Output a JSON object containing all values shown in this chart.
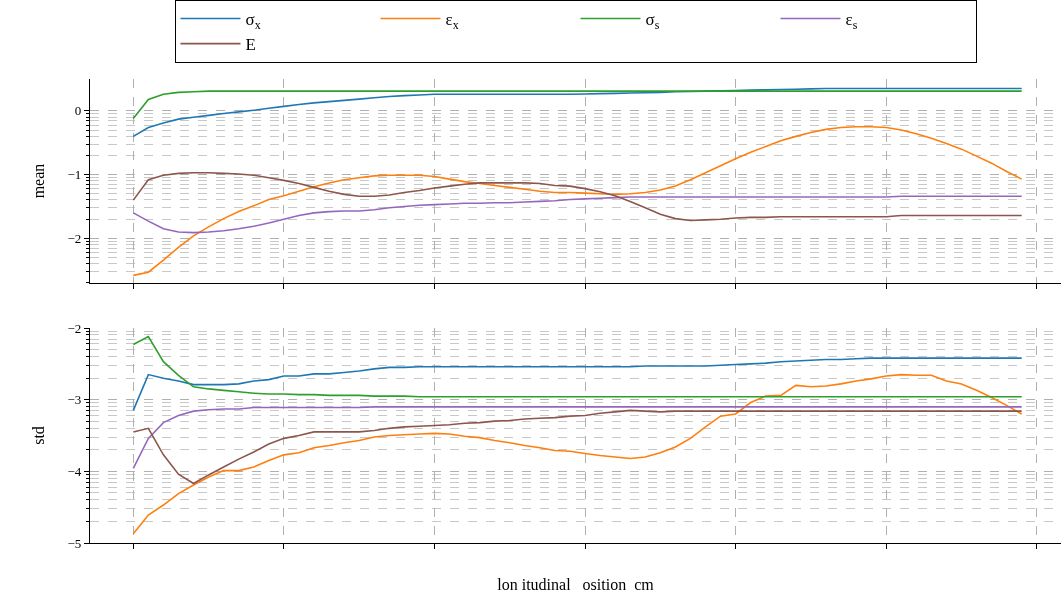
{
  "chart_data": [
    {
      "type": "line",
      "ylabel": "mean",
      "categories": [
        null,
        null,
        null,
        null,
        null,
        null,
        null,
        null,
        null,
        null,
        null,
        null,
        null,
        null,
        null,
        null,
        null,
        null,
        null,
        null,
        null,
        null,
        null,
        null,
        null,
        null,
        null,
        null,
        null,
        null,
        null,
        null,
        null,
        null,
        null,
        null,
        null,
        null,
        null,
        null,
        null,
        null,
        null,
        null,
        null,
        null,
        null,
        null,
        null,
        null,
        null,
        null,
        null,
        null,
        null,
        null,
        null,
        null,
        null,
        null
      ],
      "series": [
        {
          "name": "σ$_{x}$",
          "color": "#1f77b4",
          "values": [
            -0.4,
            -0.26,
            -0.19,
            -0.13,
            -0.1,
            -0.07,
            -0.04,
            -0.015,
            0.01,
            0.04,
            0.07,
            0.1,
            0.125,
            0.145,
            0.165,
            0.185,
            0.205,
            0.225,
            0.24,
            0.25,
            0.26,
            0.26,
            0.26,
            0.26,
            0.26,
            0.26,
            0.26,
            0.26,
            0.26,
            0.26,
            0.265,
            0.27,
            0.275,
            0.28,
            0.285,
            0.29,
            0.3,
            0.305,
            0.31,
            0.315,
            0.32,
            0.325,
            0.33,
            0.335,
            0.34,
            0.345,
            0.35,
            0.35,
            0.35,
            0.35,
            0.35,
            0.35,
            0.35,
            0.35,
            0.35,
            0.35,
            0.35,
            0.35,
            0.35,
            0.35
          ]
        },
        {
          "name": "ε$_{x}$",
          "color": "#ff7f0e",
          "values": [
            -2.58,
            -2.53,
            -2.34,
            -2.14,
            -1.96,
            -1.82,
            -1.69,
            -1.58,
            -1.49,
            -1.39,
            -1.33,
            -1.26,
            -1.19,
            -1.13,
            -1.08,
            -1.05,
            -1.02,
            -1.01,
            -1.01,
            -1.01,
            -1.03,
            -1.07,
            -1.11,
            -1.14,
            -1.17,
            -1.2,
            -1.23,
            -1.26,
            -1.28,
            -1.28,
            -1.29,
            -1.3,
            -1.31,
            -1.3,
            -1.28,
            -1.24,
            -1.18,
            -1.08,
            -0.97,
            -0.86,
            -0.75,
            -0.65,
            -0.56,
            -0.47,
            -0.4,
            -0.34,
            -0.29,
            -0.26,
            -0.25,
            -0.25,
            -0.26,
            -0.3,
            -0.36,
            -0.43,
            -0.51,
            -0.6,
            -0.71,
            -0.82,
            -0.95,
            -1.07
          ]
        },
        {
          "name": "σ$_{s}$",
          "color": "#2ca02c",
          "values": [
            -0.12,
            0.18,
            0.26,
            0.29,
            0.3,
            0.31,
            0.31,
            0.31,
            0.31,
            0.31,
            0.31,
            0.31,
            0.31,
            0.31,
            0.31,
            0.31,
            0.31,
            0.31,
            0.31,
            0.31,
            0.31,
            0.31,
            0.31,
            0.31,
            0.31,
            0.31,
            0.31,
            0.31,
            0.31,
            0.31,
            0.31,
            0.31,
            0.31,
            0.31,
            0.31,
            0.31,
            0.31,
            0.31,
            0.31,
            0.31,
            0.31,
            0.31,
            0.31,
            0.31,
            0.31,
            0.31,
            0.31,
            0.31,
            0.31,
            0.31,
            0.31,
            0.31,
            0.31,
            0.31,
            0.31,
            0.31,
            0.31,
            0.31,
            0.31,
            0.31
          ]
        },
        {
          "name": "ε$_{s}$",
          "color": "#9467bd",
          "values": [
            -1.6,
            -1.73,
            -1.85,
            -1.9,
            -1.91,
            -1.9,
            -1.88,
            -1.85,
            -1.81,
            -1.76,
            -1.7,
            -1.64,
            -1.6,
            -1.58,
            -1.57,
            -1.57,
            -1.55,
            -1.52,
            -1.5,
            -1.48,
            -1.47,
            -1.46,
            -1.45,
            -1.45,
            -1.44,
            -1.44,
            -1.43,
            -1.42,
            -1.41,
            -1.39,
            -1.38,
            -1.37,
            -1.36,
            -1.35,
            -1.35,
            -1.35,
            -1.35,
            -1.35,
            -1.35,
            -1.35,
            -1.35,
            -1.35,
            -1.35,
            -1.35,
            -1.35,
            -1.35,
            -1.35,
            -1.35,
            -1.35,
            -1.35,
            -1.35,
            -1.34,
            -1.34,
            -1.34,
            -1.34,
            -1.34,
            -1.34,
            -1.34,
            -1.34,
            -1.34
          ]
        },
        {
          "name": "E",
          "color": "#8c564b",
          "values": [
            -1.4,
            -1.08,
            -1.01,
            -0.98,
            -0.97,
            -0.97,
            -0.98,
            -0.99,
            -1.01,
            -1.05,
            -1.09,
            -1.14,
            -1.2,
            -1.26,
            -1.31,
            -1.34,
            -1.34,
            -1.32,
            -1.28,
            -1.25,
            -1.21,
            -1.18,
            -1.15,
            -1.13,
            -1.13,
            -1.13,
            -1.13,
            -1.14,
            -1.17,
            -1.18,
            -1.22,
            -1.27,
            -1.33,
            -1.42,
            -1.52,
            -1.62,
            -1.69,
            -1.72,
            -1.71,
            -1.7,
            -1.68,
            -1.67,
            -1.67,
            -1.66,
            -1.66,
            -1.66,
            -1.66,
            -1.66,
            -1.66,
            -1.66,
            -1.66,
            -1.64,
            -1.64,
            -1.64,
            -1.64,
            -1.64,
            -1.64,
            -1.64,
            -1.64,
            -1.64
          ]
        }
      ],
      "ylim": [
        -2.7,
        0.5
      ],
      "yticks": [
        0,
        {
          "value": -1,
          "label": "−1"
        },
        {
          "value": -2,
          "label": "−2"
        }
      ],
      "grid": true,
      "legend": "top",
      "tick_labels": "y"
    },
    {
      "type": "line",
      "ylabel": "std",
      "xlabel": "lon itudinal   osition  cm",
      "categories": [
        null,
        null,
        null,
        null,
        null,
        null,
        null,
        null,
        null,
        null,
        null,
        null,
        null,
        null,
        null,
        null,
        null,
        null,
        null,
        null,
        null,
        null,
        null,
        null,
        null,
        null,
        null,
        null,
        null,
        null,
        null,
        null,
        null,
        null,
        null,
        null,
        null,
        null,
        null,
        null,
        null,
        null,
        null,
        null,
        null,
        null,
        null,
        null,
        null,
        null,
        null,
        null,
        null,
        null,
        null,
        null,
        null,
        null,
        null,
        null
      ],
      "series": [
        {
          "color": "#1f77b4",
          "values": [
            -3.15,
            -2.65,
            -2.7,
            -2.74,
            -2.79,
            -2.79,
            -2.79,
            -2.78,
            -2.74,
            -2.72,
            -2.67,
            -2.67,
            -2.64,
            -2.64,
            -2.62,
            -2.6,
            -2.57,
            -2.55,
            -2.55,
            -2.54,
            -2.54,
            -2.54,
            -2.54,
            -2.54,
            -2.54,
            -2.54,
            -2.54,
            -2.54,
            -2.54,
            -2.54,
            -2.54,
            -2.54,
            -2.54,
            -2.54,
            -2.53,
            -2.53,
            -2.53,
            -2.53,
            -2.53,
            -2.52,
            -2.51,
            -2.5,
            -2.49,
            -2.47,
            -2.46,
            -2.45,
            -2.44,
            -2.44,
            -2.43,
            -2.42,
            -2.42,
            -2.42,
            -2.42,
            -2.42,
            -2.42,
            -2.42,
            -2.42,
            -2.42,
            -2.42,
            -2.42
          ]
        },
        {
          "color": "#ff7f0e",
          "values": [
            -4.87,
            -4.61,
            -4.47,
            -4.31,
            -4.19,
            -4.08,
            -3.99,
            -3.99,
            -3.94,
            -3.85,
            -3.77,
            -3.74,
            -3.67,
            -3.64,
            -3.6,
            -3.57,
            -3.52,
            -3.5,
            -3.49,
            -3.48,
            -3.47,
            -3.48,
            -3.51,
            -3.53,
            -3.57,
            -3.6,
            -3.64,
            -3.67,
            -3.71,
            -3.72,
            -3.75,
            -3.78,
            -3.8,
            -3.82,
            -3.8,
            -3.74,
            -3.66,
            -3.54,
            -3.38,
            -3.23,
            -3.2,
            -3.04,
            -2.95,
            -2.94,
            -2.8,
            -2.82,
            -2.81,
            -2.78,
            -2.74,
            -2.71,
            -2.67,
            -2.65,
            -2.66,
            -2.66,
            -2.74,
            -2.78,
            -2.87,
            -2.97,
            -3.08,
            -3.2
          ]
        },
        {
          "color": "#2ca02c",
          "values": [
            -2.23,
            -2.12,
            -2.47,
            -2.66,
            -2.82,
            -2.85,
            -2.87,
            -2.89,
            -2.91,
            -2.92,
            -2.92,
            -2.93,
            -2.93,
            -2.94,
            -2.94,
            -2.94,
            -2.95,
            -2.95,
            -2.95,
            -2.96,
            -2.96,
            -2.96,
            -2.96,
            -2.96,
            -2.96,
            -2.96,
            -2.96,
            -2.96,
            -2.96,
            -2.96,
            -2.96,
            -2.96,
            -2.96,
            -2.96,
            -2.96,
            -2.96,
            -2.96,
            -2.96,
            -2.96,
            -2.96,
            -2.96,
            -2.96,
            -2.96,
            -2.96,
            -2.96,
            -2.96,
            -2.96,
            -2.96,
            -2.96,
            -2.96,
            -2.96,
            -2.96,
            -2.96,
            -2.96,
            -2.96,
            -2.96,
            -2.96,
            -2.96,
            -2.96,
            -2.96
          ]
        },
        {
          "color": "#9467bd",
          "values": [
            -3.96,
            -3.54,
            -3.32,
            -3.22,
            -3.16,
            -3.14,
            -3.13,
            -3.13,
            -3.11,
            -3.11,
            -3.11,
            -3.11,
            -3.11,
            -3.11,
            -3.11,
            -3.11,
            -3.1,
            -3.1,
            -3.1,
            -3.1,
            -3.1,
            -3.1,
            -3.1,
            -3.1,
            -3.1,
            -3.1,
            -3.1,
            -3.1,
            -3.1,
            -3.1,
            -3.1,
            -3.1,
            -3.1,
            -3.1,
            -3.1,
            -3.1,
            -3.1,
            -3.1,
            -3.1,
            -3.1,
            -3.1,
            -3.1,
            -3.1,
            -3.1,
            -3.1,
            -3.1,
            -3.1,
            -3.1,
            -3.1,
            -3.1,
            -3.1,
            -3.1,
            -3.1,
            -3.1,
            -3.1,
            -3.1,
            -3.1,
            -3.1,
            -3.1,
            -3.1
          ]
        },
        {
          "color": "#8c564b",
          "values": [
            -3.45,
            -3.4,
            -3.77,
            -4.04,
            -4.17,
            -4.05,
            -3.94,
            -3.83,
            -3.73,
            -3.62,
            -3.54,
            -3.5,
            -3.45,
            -3.45,
            -3.45,
            -3.45,
            -3.43,
            -3.4,
            -3.38,
            -3.37,
            -3.36,
            -3.35,
            -3.33,
            -3.32,
            -3.3,
            -3.29,
            -3.27,
            -3.26,
            -3.25,
            -3.23,
            -3.22,
            -3.19,
            -3.17,
            -3.15,
            -3.16,
            -3.17,
            -3.16,
            -3.16,
            -3.16,
            -3.16,
            -3.16,
            -3.16,
            -3.16,
            -3.16,
            -3.16,
            -3.16,
            -3.16,
            -3.16,
            -3.16,
            -3.16,
            -3.16,
            -3.16,
            -3.16,
            -3.16,
            -3.16,
            -3.16,
            -3.16,
            -3.16,
            -3.16,
            -3.16
          ]
        }
      ],
      "ylim": [
        -5,
        -2
      ],
      "yticks": [
        {
          "value": -2,
          "label": "−2"
        },
        {
          "value": -3,
          "label": "−3"
        },
        {
          "value": -4,
          "label": "−4"
        },
        {
          "value": -5,
          "label": "−5"
        }
      ],
      "grid": true,
      "tick_labels": "y"
    }
  ]
}
